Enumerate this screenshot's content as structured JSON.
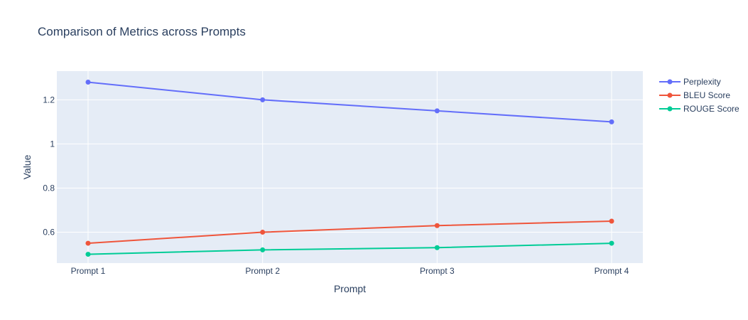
{
  "chart_data": {
    "type": "line",
    "title": "Comparison of Metrics across Prompts",
    "xlabel": "Prompt",
    "ylabel": "Value",
    "categories": [
      "Prompt 1",
      "Prompt 2",
      "Prompt 3",
      "Prompt 4"
    ],
    "ylim": [
      0.46,
      1.33
    ],
    "yticks": [
      0.6,
      0.8,
      1,
      1.2
    ],
    "ytick_labels": [
      "0.6",
      "0.8",
      "1",
      "1.2"
    ],
    "grid": true,
    "legend_position": "top-right",
    "series": [
      {
        "name": "Perplexity",
        "color": "#636efa",
        "values": [
          1.28,
          1.2,
          1.15,
          1.1
        ]
      },
      {
        "name": "BLEU Score",
        "color": "#ef553b",
        "values": [
          0.55,
          0.6,
          0.63,
          0.65
        ]
      },
      {
        "name": "ROUGE Score",
        "color": "#00cc96",
        "values": [
          0.5,
          0.52,
          0.53,
          0.55
        ]
      }
    ],
    "plot_background": "#e5ecf6",
    "gridline_color": "#ffffff"
  }
}
